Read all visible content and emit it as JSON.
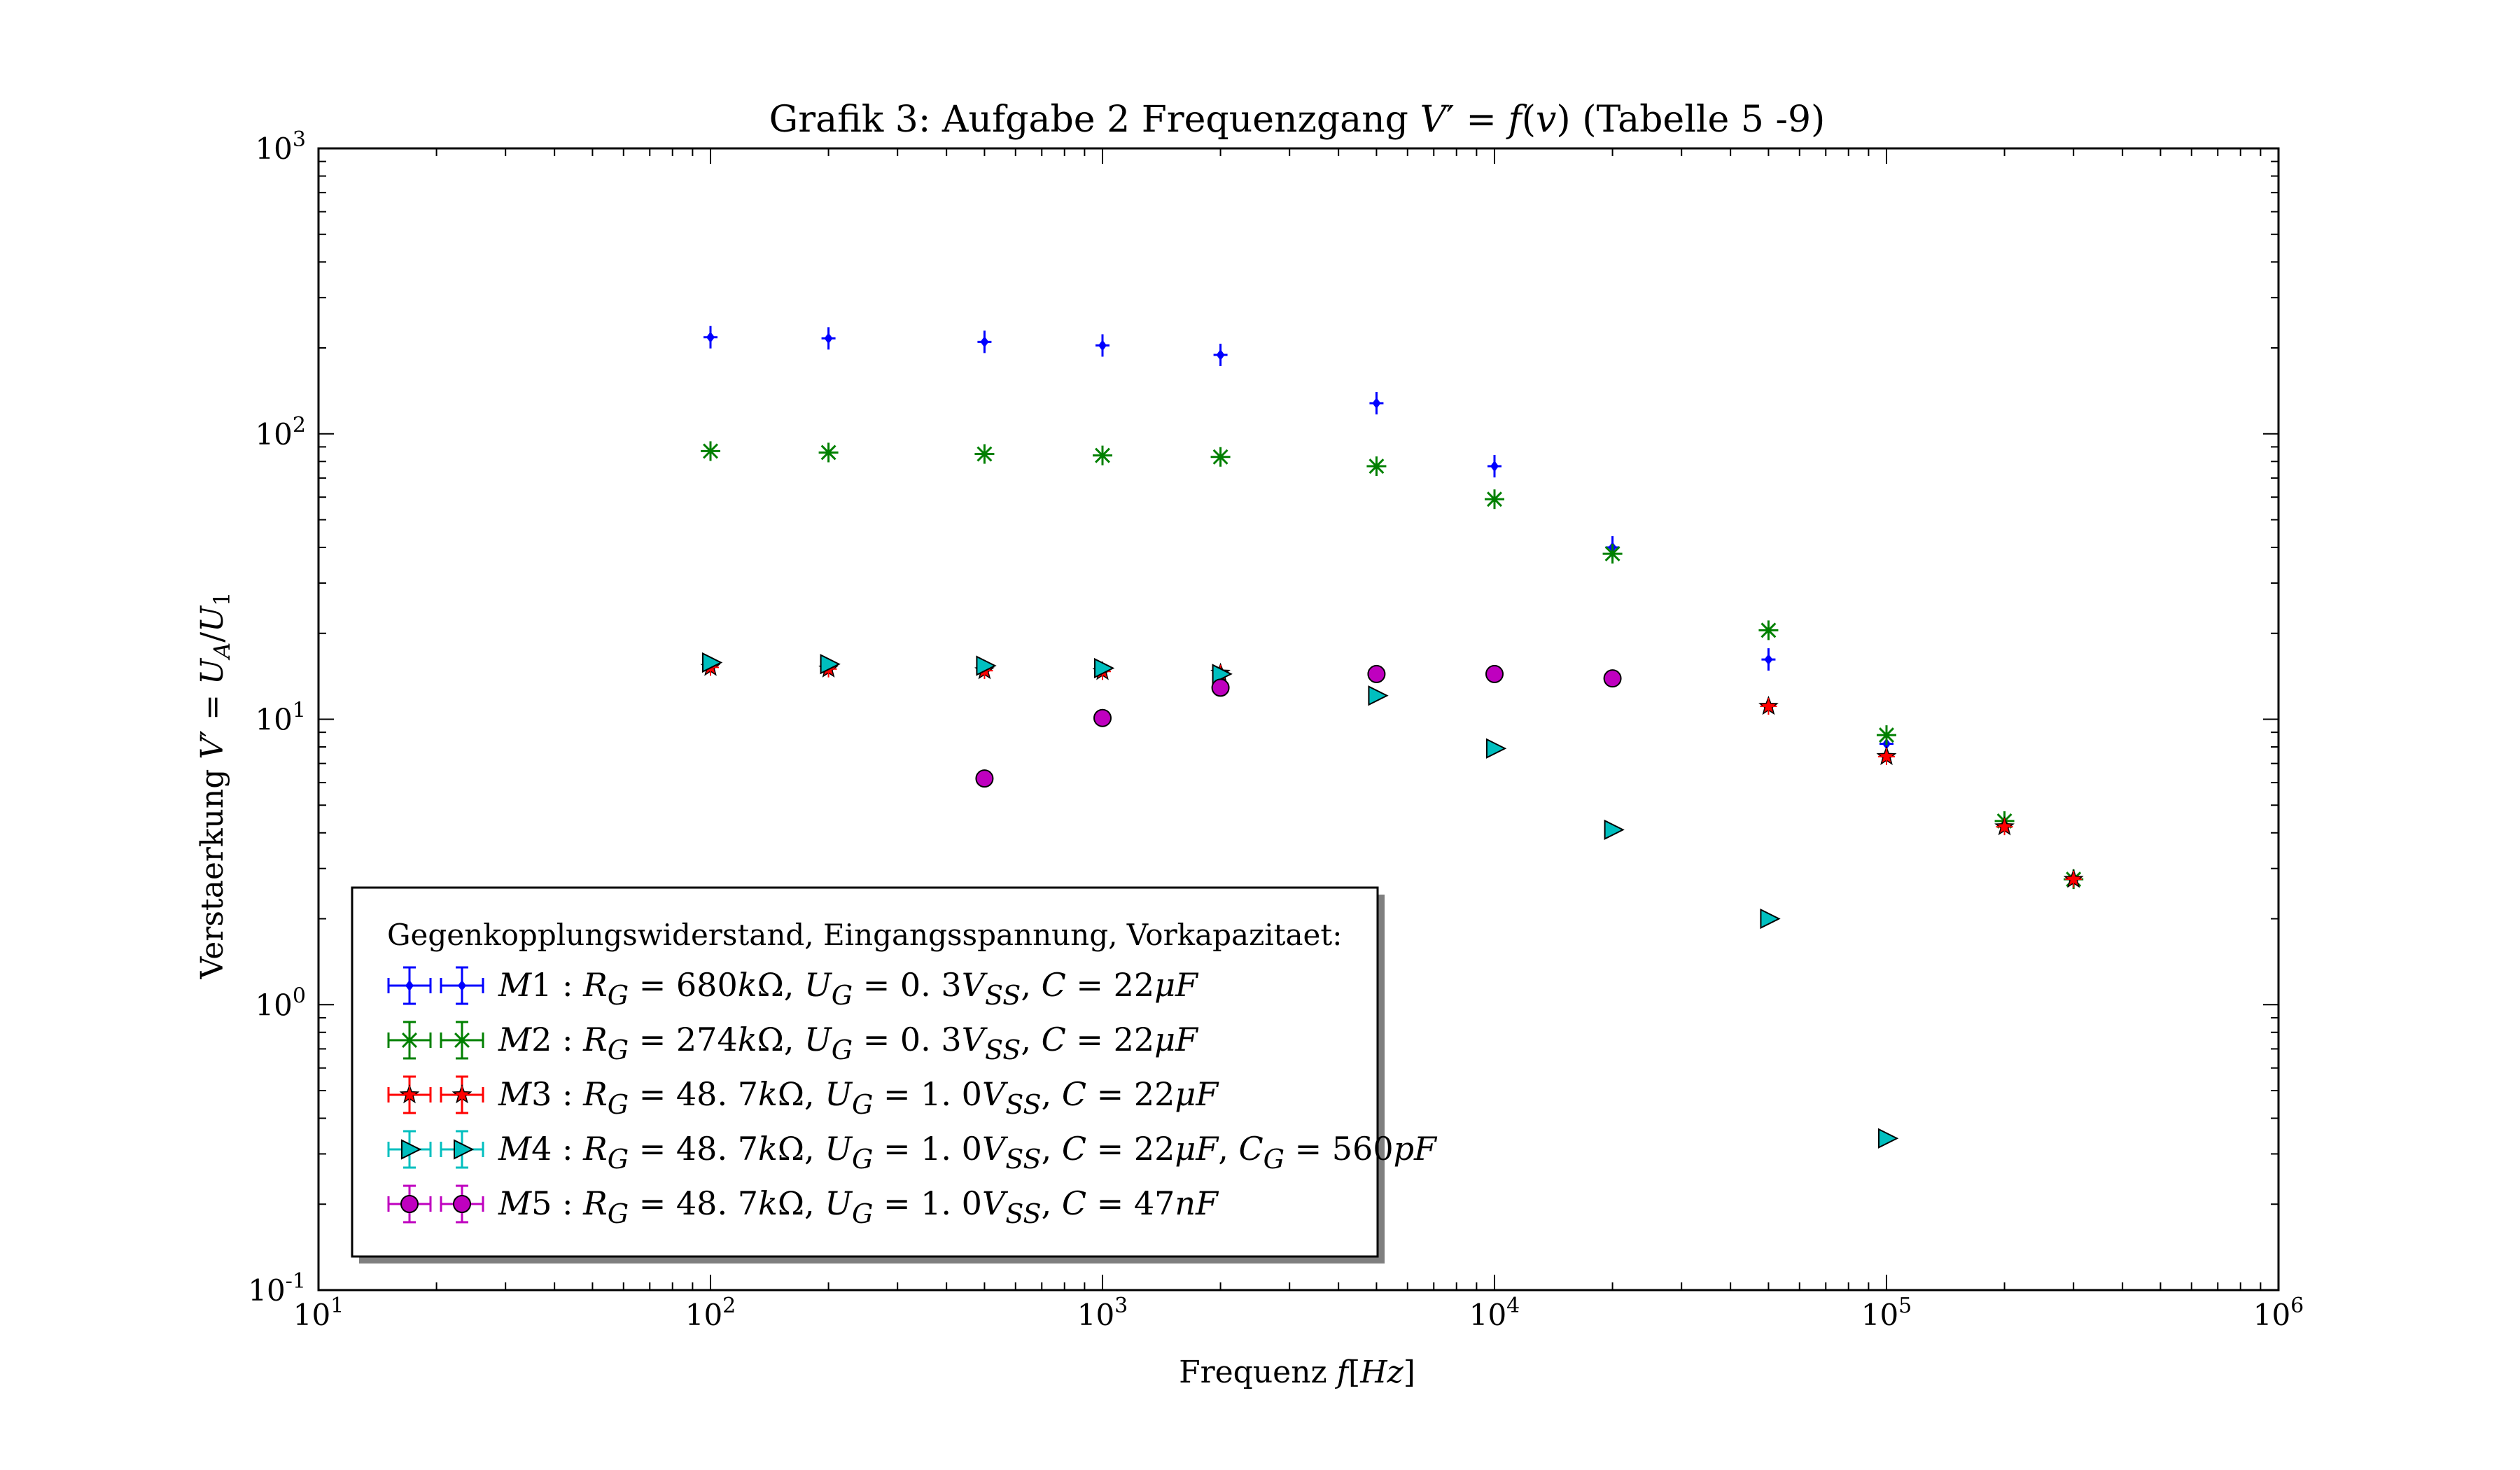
{
  "chart_data": {
    "type": "scatter",
    "title": "Grafik 3: Aufgabe 2 Frequenzgang V′ = f(v) (Tabelle 5 -9)",
    "xlabel": "Frequenz f[Hz]",
    "ylabel": "Verstaerkung V′ = U_A/U_1",
    "xscale": "log",
    "yscale": "log",
    "xlim": [
      10,
      1000000
    ],
    "ylim": [
      0.1,
      1000
    ],
    "x_ticks": [
      {
        "value": 10,
        "base": "10",
        "exp": "1"
      },
      {
        "value": 100,
        "base": "10",
        "exp": "2"
      },
      {
        "value": 1000,
        "base": "10",
        "exp": "3"
      },
      {
        "value": 10000,
        "base": "10",
        "exp": "4"
      },
      {
        "value": 100000,
        "base": "10",
        "exp": "5"
      },
      {
        "value": 1000000,
        "base": "10",
        "exp": "6"
      }
    ],
    "y_ticks": [
      {
        "value": 0.1,
        "base": "10",
        "exp": "-1"
      },
      {
        "value": 1,
        "base": "10",
        "exp": "0"
      },
      {
        "value": 10,
        "base": "10",
        "exp": "1"
      },
      {
        "value": 100,
        "base": "10",
        "exp": "2"
      },
      {
        "value": 1000,
        "base": "10",
        "exp": "3"
      }
    ],
    "grid": false,
    "legend": {
      "placement": "lower-left",
      "title": "Gegenkopplungswiderstand, Eingangsspannung, Vorkapazitaet:"
    },
    "series": [
      {
        "name": "M1 : R_G = 680kΩ, U_G = 0.3V_SS, C = 22μF",
        "label_html": "<tspan font-style='italic'>M</tspan>1 : <tspan font-style='italic'>R</tspan><tspan dy='12' font-size='38' font-style='italic'>G</tspan><tspan dy='-12'> = 680</tspan><tspan font-style='italic'>k</tspan>Ω, <tspan font-style='italic'>U</tspan><tspan dy='12' font-size='38' font-style='italic'>G</tspan><tspan dy='-12'> = 0. 3</tspan><tspan font-style='italic'>V</tspan><tspan dy='12' font-size='38' font-style='italic'>SS</tspan><tspan dy='-12'>, </tspan><tspan font-style='italic'>C</tspan> = 22<tspan font-style='italic'>μF</tspan>",
        "marker": "plus",
        "color": "#0000ff",
        "points": [
          {
            "x": 100,
            "y": 218
          },
          {
            "x": 200,
            "y": 216
          },
          {
            "x": 500,
            "y": 210
          },
          {
            "x": 1000,
            "y": 204
          },
          {
            "x": 2000,
            "y": 189
          },
          {
            "x": 5000,
            "y": 128
          },
          {
            "x": 10000,
            "y": 77
          },
          {
            "x": 20000,
            "y": 40
          },
          {
            "x": 50000,
            "y": 16.2
          },
          {
            "x": 100000,
            "y": 8.2
          }
        ]
      },
      {
        "name": "M2 : R_G = 274kΩ, U_G = 0.3V_SS, C = 22μF",
        "label_html": "<tspan font-style='italic'>M</tspan>2 : <tspan font-style='italic'>R</tspan><tspan dy='12' font-size='38' font-style='italic'>G</tspan><tspan dy='-12'> = 274</tspan><tspan font-style='italic'>k</tspan>Ω, <tspan font-style='italic'>U</tspan><tspan dy='12' font-size='38' font-style='italic'>G</tspan><tspan dy='-12'> = 0. 3</tspan><tspan font-style='italic'>V</tspan><tspan dy='12' font-size='38' font-style='italic'>SS</tspan><tspan dy='-12'>, </tspan><tspan font-style='italic'>C</tspan> = 22<tspan font-style='italic'>μF</tspan>",
        "marker": "star-x",
        "color": "#008000",
        "points": [
          {
            "x": 100,
            "y": 87
          },
          {
            "x": 200,
            "y": 86
          },
          {
            "x": 500,
            "y": 85
          },
          {
            "x": 1000,
            "y": 84
          },
          {
            "x": 2000,
            "y": 83
          },
          {
            "x": 5000,
            "y": 77
          },
          {
            "x": 10000,
            "y": 59
          },
          {
            "x": 20000,
            "y": 38
          },
          {
            "x": 50000,
            "y": 20.5
          },
          {
            "x": 100000,
            "y": 8.8
          },
          {
            "x": 200000,
            "y": 4.4
          },
          {
            "x": 300000,
            "y": 2.75
          }
        ]
      },
      {
        "name": "M3 : R_G = 48.7kΩ, U_G = 1.0V_SS, C = 22μF",
        "label_html": "<tspan font-style='italic'>M</tspan>3 : <tspan font-style='italic'>R</tspan><tspan dy='12' font-size='38' font-style='italic'>G</tspan><tspan dy='-12'> = 48. 7</tspan><tspan font-style='italic'>k</tspan>Ω, <tspan font-style='italic'>U</tspan><tspan dy='12' font-size='38' font-style='italic'>G</tspan><tspan dy='-12'> = 1. 0</tspan><tspan font-style='italic'>V</tspan><tspan dy='12' font-size='38' font-style='italic'>SS</tspan><tspan dy='-12'>, </tspan><tspan font-style='italic'>C</tspan> = 22<tspan font-style='italic'>μF</tspan>",
        "marker": "star",
        "color": "#ff0000",
        "points": [
          {
            "x": 100,
            "y": 15.2
          },
          {
            "x": 200,
            "y": 15.0
          },
          {
            "x": 500,
            "y": 14.8
          },
          {
            "x": 1000,
            "y": 14.7
          },
          {
            "x": 2000,
            "y": 14.5
          },
          {
            "x": 50000,
            "y": 11.1
          },
          {
            "x": 100000,
            "y": 7.4
          },
          {
            "x": 200000,
            "y": 4.2
          },
          {
            "x": 300000,
            "y": 2.75
          }
        ]
      },
      {
        "name": "M4 : R_G = 48.7kΩ, U_G = 1.0V_SS, C = 22μF, C_G = 560pF",
        "label_html": "<tspan font-style='italic'>M</tspan>4 : <tspan font-style='italic'>R</tspan><tspan dy='12' font-size='38' font-style='italic'>G</tspan><tspan dy='-12'> = 48. 7</tspan><tspan font-style='italic'>k</tspan>Ω, <tspan font-style='italic'>U</tspan><tspan dy='12' font-size='38' font-style='italic'>G</tspan><tspan dy='-12'> = 1. 0</tspan><tspan font-style='italic'>V</tspan><tspan dy='12' font-size='38' font-style='italic'>SS</tspan><tspan dy='-12'>, </tspan><tspan font-style='italic'>C</tspan> = 22<tspan font-style='italic'>μF</tspan>, <tspan font-style='italic'>C</tspan><tspan dy='12' font-size='38' font-style='italic'>G</tspan><tspan dy='-12'> = 560</tspan><tspan font-style='italic'>pF</tspan>",
        "marker": "triangle-right",
        "color": "#00bfbf",
        "points": [
          {
            "x": 100,
            "y": 15.8
          },
          {
            "x": 200,
            "y": 15.6
          },
          {
            "x": 500,
            "y": 15.4
          },
          {
            "x": 1000,
            "y": 15.1
          },
          {
            "x": 2000,
            "y": 14.4
          },
          {
            "x": 5000,
            "y": 12.1
          },
          {
            "x": 10000,
            "y": 7.9
          },
          {
            "x": 20000,
            "y": 4.1
          },
          {
            "x": 50000,
            "y": 2.0
          },
          {
            "x": 100000,
            "y": 0.34
          }
        ]
      },
      {
        "name": "M5 : R_G = 48.7kΩ, U_G = 1.0V_SS, C = 47nF",
        "label_html": "<tspan font-style='italic'>M</tspan>5 : <tspan font-style='italic'>R</tspan><tspan dy='12' font-size='38' font-style='italic'>G</tspan><tspan dy='-12'> = 48. 7</tspan><tspan font-style='italic'>k</tspan>Ω, <tspan font-style='italic'>U</tspan><tspan dy='12' font-size='38' font-style='italic'>G</tspan><tspan dy='-12'> = 1. 0</tspan><tspan font-style='italic'>V</tspan><tspan dy='12' font-size='38' font-style='italic'>SS</tspan><tspan dy='-12'>, </tspan><tspan font-style='italic'>C</tspan> = 47<tspan font-style='italic'>nF</tspan>",
        "marker": "circle",
        "color": "#bf00bf",
        "points": [
          {
            "x": 500,
            "y": 6.2
          },
          {
            "x": 1000,
            "y": 10.1
          },
          {
            "x": 2000,
            "y": 12.9
          },
          {
            "x": 5000,
            "y": 14.4
          },
          {
            "x": 10000,
            "y": 14.4
          },
          {
            "x": 20000,
            "y": 13.9
          }
        ]
      }
    ]
  }
}
